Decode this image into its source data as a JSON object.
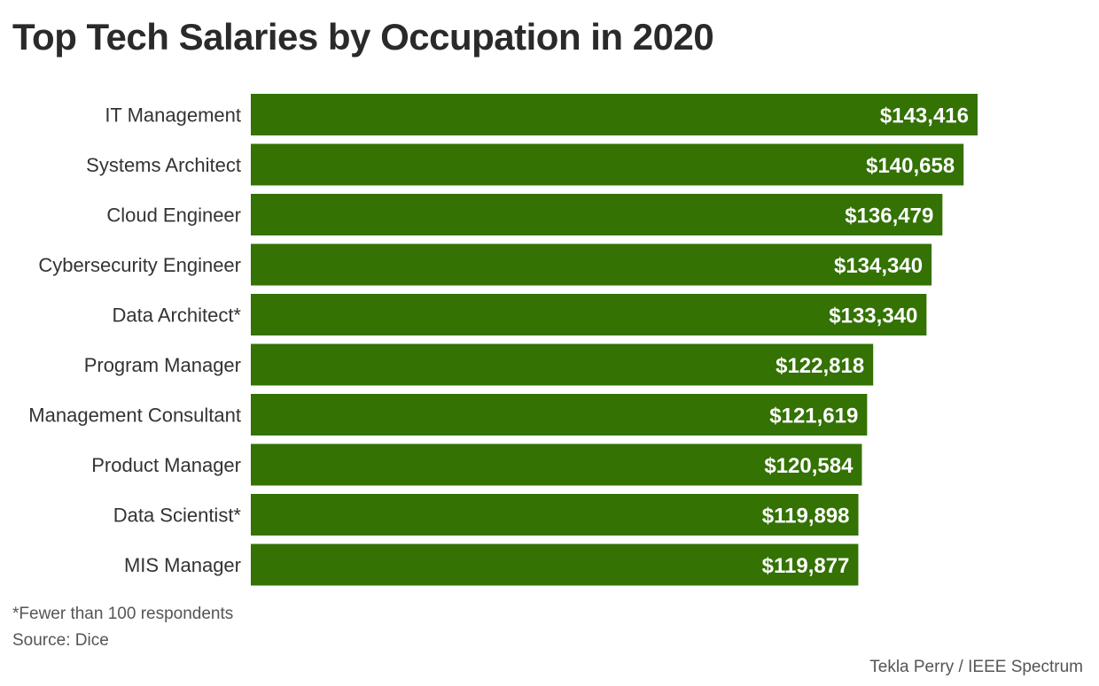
{
  "title": "Top Tech Salaries by Occupation in 2020",
  "footnote": "*Fewer than 100 respondents",
  "source": "Source: Dice",
  "credit": "Tekla Perry / IEEE Spectrum",
  "colors": {
    "bar": "#337203",
    "bar_label": "#ffffff",
    "category_label": "#333333"
  },
  "chart_data": {
    "type": "bar",
    "orientation": "horizontal",
    "title": "Top Tech Salaries by Occupation in 2020",
    "xlabel": "",
    "ylabel": "",
    "grid": false,
    "categories": [
      "IT Management",
      "Systems Architect",
      "Cloud Engineer",
      "Cybersecurity Engineer",
      "Data Architect*",
      "Program Manager",
      "Management Consultant",
      "Product Manager",
      "Data Scientist*",
      "MIS Manager"
    ],
    "values": [
      143416,
      140658,
      136479,
      134340,
      133340,
      122818,
      121619,
      120584,
      119898,
      119877
    ],
    "value_labels": [
      "$143,416",
      "$140,658",
      "$136,479",
      "$134,340",
      "$133,340",
      "$122,818",
      "$121,619",
      "$120,584",
      "$119,898",
      "$119,877"
    ]
  }
}
